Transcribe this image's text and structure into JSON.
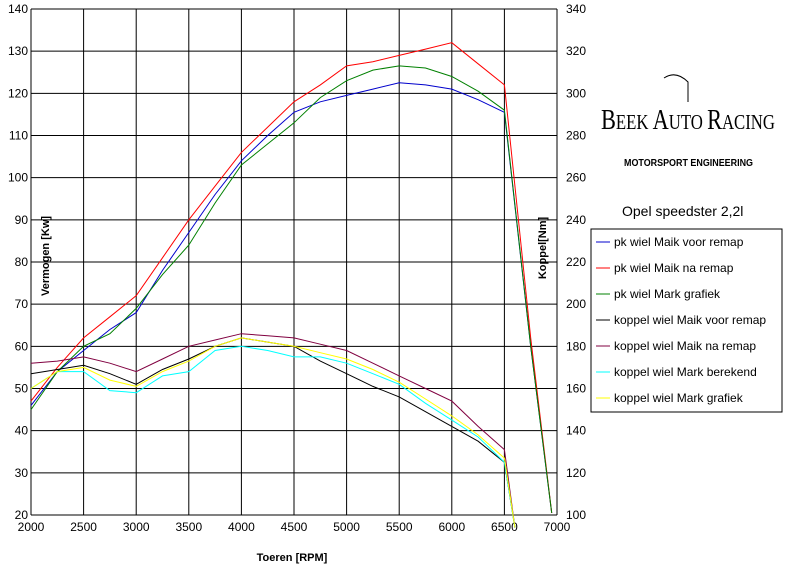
{
  "brand": {
    "name_parts": [
      "B",
      "EEK ",
      "A",
      "UTO ",
      "R",
      "ACING"
    ],
    "subtitle": "MOTORSPORT ENGINEERING"
  },
  "chart_data": {
    "type": "line",
    "title": "Opel speedster 2,2l",
    "xlabel": "Toeren [RPM]",
    "ylabel_left": "Vermogen [Kw]",
    "ylabel_right": "Koppel[Nm]",
    "xlim": [
      2000,
      7000
    ],
    "ylim_left": [
      20,
      140
    ],
    "ylim_right": [
      100,
      340
    ],
    "x_ticks": [
      2000,
      2500,
      3000,
      3500,
      4000,
      4500,
      5000,
      5500,
      6000,
      6500,
      7000
    ],
    "y_left_ticks": [
      20,
      30,
      40,
      50,
      60,
      70,
      80,
      90,
      100,
      110,
      120,
      130,
      140
    ],
    "y_right_ticks": [
      100,
      120,
      140,
      160,
      180,
      200,
      220,
      240,
      260,
      280,
      300,
      320,
      340
    ],
    "series": [
      {
        "name": "pk wiel Maik voor remap",
        "axis": "left",
        "color": "#0000cc",
        "x": [
          2000,
          2250,
          2500,
          2750,
          3000,
          3250,
          3500,
          3750,
          4000,
          4250,
          4500,
          4750,
          5000,
          5250,
          5500,
          5750,
          6000,
          6250,
          6500,
          6750,
          6950
        ],
        "y": [
          46,
          54,
          59,
          64,
          68,
          78,
          87,
          96,
          104,
          110,
          115.5,
          118,
          119.5,
          121,
          122.5,
          122,
          121,
          118.5,
          115.5,
          60,
          20.5
        ]
      },
      {
        "name": "pk wiel Maik na remap",
        "axis": "left",
        "color": "#ff0000",
        "x": [
          2000,
          2250,
          2500,
          2750,
          3000,
          3250,
          3500,
          3750,
          4000,
          4250,
          4500,
          4750,
          5000,
          5250,
          5500,
          5750,
          6000,
          6250,
          6500,
          6750,
          6950
        ],
        "y": [
          47,
          55,
          62,
          67,
          72,
          81,
          90,
          98,
          106,
          112,
          118,
          122,
          126.5,
          127.5,
          129,
          130.5,
          132,
          127,
          122,
          62,
          20.5
        ]
      },
      {
        "name": "pk wiel Mark grafiek",
        "axis": "left",
        "color": "#008000",
        "x": [
          2000,
          2250,
          2500,
          2750,
          3000,
          3250,
          3500,
          3750,
          4000,
          4250,
          4500,
          4750,
          5000,
          5250,
          5500,
          5750,
          6000,
          6250,
          6500,
          6750,
          6950
        ],
        "y": [
          45,
          54,
          60,
          63,
          69,
          77,
          84,
          94,
          103,
          108,
          113,
          119,
          123,
          125.5,
          126.5,
          126,
          124,
          120.5,
          116,
          60,
          20.5
        ]
      },
      {
        "name": "koppel wiel Maik voor remap",
        "axis": "right",
        "color": "#000000",
        "x": [
          2000,
          2250,
          2500,
          2750,
          3000,
          3250,
          3500,
          3750,
          4000,
          4250,
          4500,
          4750,
          5000,
          5250,
          5500,
          5750,
          6000,
          6250,
          6500,
          6600
        ],
        "y": [
          167,
          169,
          171,
          167,
          162,
          169,
          174,
          180,
          184,
          182,
          180,
          173,
          167,
          161,
          156,
          149,
          142,
          135,
          125,
          94
        ]
      },
      {
        "name": "koppel wiel Maik na remap",
        "axis": "right",
        "color": "#800040",
        "x": [
          2000,
          2250,
          2500,
          2750,
          3000,
          3250,
          3500,
          3750,
          4000,
          4250,
          4500,
          4750,
          5000,
          5250,
          5500,
          5750,
          6000,
          6250,
          6500,
          6600
        ],
        "y": [
          172,
          173,
          175,
          172,
          168,
          174,
          180,
          183,
          186,
          185,
          184,
          181,
          178,
          172,
          166,
          160,
          154,
          142,
          131,
          94
        ]
      },
      {
        "name": "koppel wiel Mark berekend",
        "axis": "right",
        "color": "#00ffff",
        "x": [
          2000,
          2250,
          2500,
          2750,
          3000,
          3250,
          3500,
          3750,
          4000,
          4250,
          4500,
          4750,
          5000,
          5250,
          5500,
          5750,
          6000,
          6250,
          6500,
          6600
        ],
        "y": [
          160,
          168,
          168,
          159,
          158,
          166,
          168,
          178,
          180,
          178,
          175,
          175,
          172,
          167,
          162,
          153,
          145,
          137,
          125,
          94
        ]
      },
      {
        "name": "koppel wiel Mark grafiek",
        "axis": "right",
        "color": "#ffff00",
        "x": [
          2000,
          2250,
          2500,
          2750,
          3000,
          3250,
          3500,
          3750,
          4000,
          4250,
          4500,
          4750,
          5000,
          5250,
          5500,
          5750,
          6000,
          6250,
          6500,
          6600
        ],
        "y": [
          160,
          168,
          170,
          164,
          161,
          168,
          173,
          180,
          184,
          182,
          180,
          177,
          174,
          169,
          163,
          155,
          147,
          138,
          127,
          94
        ]
      }
    ]
  }
}
